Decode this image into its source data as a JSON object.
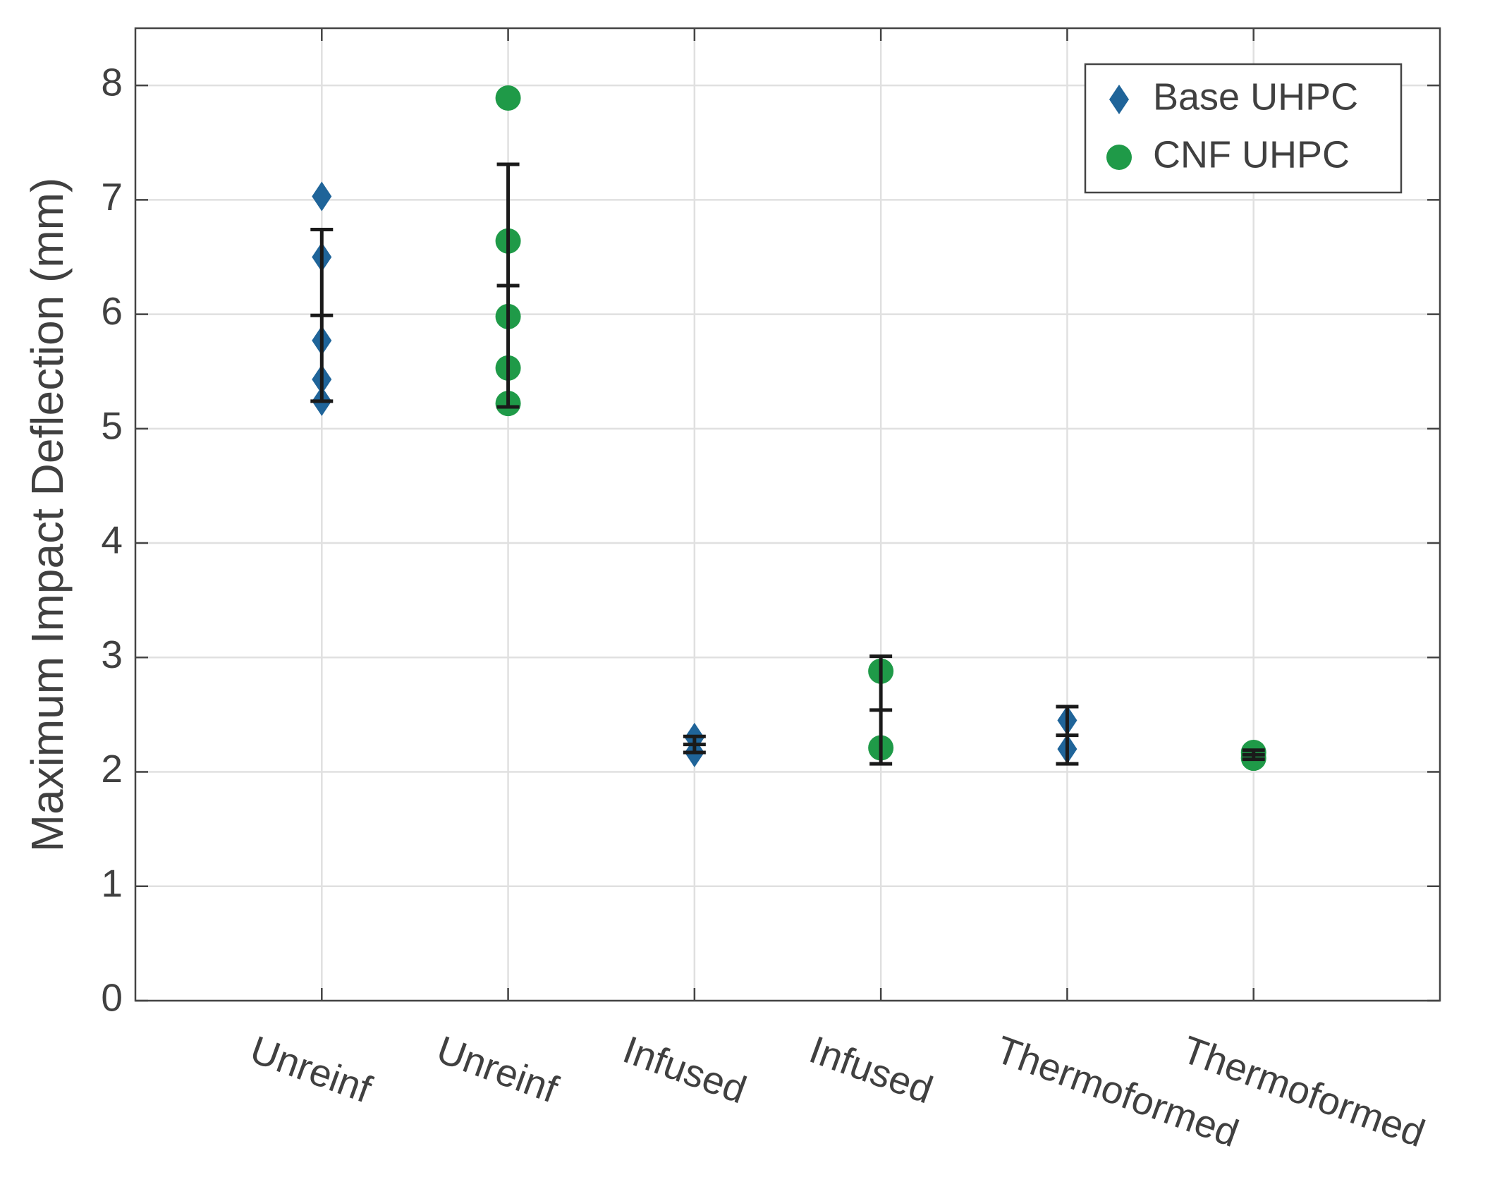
{
  "chart_data": {
    "type": "scatter",
    "y_label": "Maximum Impact Deflection (mm)",
    "categories": [
      "Unreinf",
      "Unreinf",
      "Infused",
      "Infused",
      "Thermoformed",
      "Thermoformed"
    ],
    "series": [
      {
        "name": "Base UHPC",
        "color": "#1f6499",
        "marker": "diamond",
        "values": [
          [
            7.03,
            6.5,
            5.77,
            5.43,
            5.24
          ],
          null,
          [
            2.3,
            2.17
          ],
          null,
          [
            2.45,
            2.2
          ],
          null
        ],
        "means": [
          5.99,
          null,
          2.24,
          null,
          2.32,
          null
        ],
        "errors": [
          0.75,
          null,
          0.07,
          null,
          0.25,
          null
        ]
      },
      {
        "name": "CNF UHPC",
        "color": "#1f9a48",
        "marker": "circle",
        "values": [
          null,
          [
            7.89,
            6.64,
            5.98,
            5.53,
            5.22
          ],
          null,
          [
            2.88,
            2.21
          ],
          null,
          [
            2.17,
            2.12
          ]
        ],
        "means": [
          null,
          6.25,
          null,
          2.54,
          null,
          2.15
        ],
        "errors": [
          null,
          1.06,
          null,
          0.47,
          null,
          0.04
        ]
      }
    ],
    "errorbar_color": "#1a1a1a",
    "ylim": [
      0,
      8.5
    ],
    "yticks": [
      0,
      1,
      2,
      3,
      4,
      5,
      6,
      7,
      8
    ],
    "grid": true,
    "legend": "northeast"
  }
}
